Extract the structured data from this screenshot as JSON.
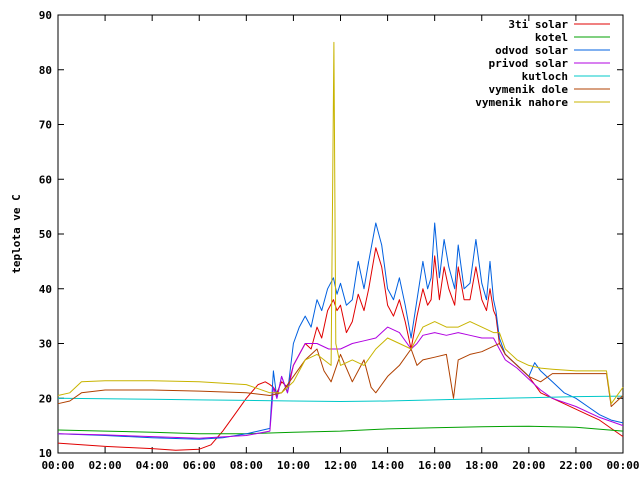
{
  "chart_data": {
    "type": "line",
    "title": "",
    "xlabel": "",
    "ylabel": "teplota ve C",
    "ylim": [
      10,
      90
    ],
    "xlim": [
      0,
      24
    ],
    "yticks": [
      10,
      20,
      30,
      40,
      50,
      60,
      70,
      80,
      90
    ],
    "xticks": [
      {
        "v": 0,
        "label": "00:00"
      },
      {
        "v": 2,
        "label": "02:00"
      },
      {
        "v": 4,
        "label": "04:00"
      },
      {
        "v": 6,
        "label": "06:00"
      },
      {
        "v": 8,
        "label": "08:00"
      },
      {
        "v": 10,
        "label": "10:00"
      },
      {
        "v": 12,
        "label": "12:00"
      },
      {
        "v": 14,
        "label": "14:00"
      },
      {
        "v": 16,
        "label": "16:00"
      },
      {
        "v": 18,
        "label": "18:00"
      },
      {
        "v": 20,
        "label": "20:00"
      },
      {
        "v": 22,
        "label": "22:00"
      },
      {
        "v": 24,
        "label": "00:00"
      }
    ],
    "legend": "top-right",
    "grid": false,
    "series": [
      {
        "name": "3ti solar",
        "color": "#e00000",
        "points": [
          [
            0,
            11.8
          ],
          [
            1,
            11.5
          ],
          [
            2,
            11.2
          ],
          [
            3,
            11
          ],
          [
            4,
            10.8
          ],
          [
            5,
            10.5
          ],
          [
            6,
            10.7
          ],
          [
            6.5,
            11.5
          ],
          [
            7,
            14
          ],
          [
            7.5,
            17
          ],
          [
            8,
            20
          ],
          [
            8.5,
            22.5
          ],
          [
            8.8,
            23
          ],
          [
            9,
            22.5
          ],
          [
            9.15,
            22
          ],
          [
            9.3,
            21
          ],
          [
            9.5,
            23
          ],
          [
            9.75,
            22
          ],
          [
            10,
            26
          ],
          [
            10.25,
            28
          ],
          [
            10.5,
            30
          ],
          [
            10.75,
            29
          ],
          [
            11,
            33
          ],
          [
            11.2,
            31
          ],
          [
            11.45,
            36
          ],
          [
            11.7,
            38
          ],
          [
            11.85,
            36
          ],
          [
            12,
            37
          ],
          [
            12.25,
            32
          ],
          [
            12.5,
            34
          ],
          [
            12.75,
            39
          ],
          [
            13,
            36
          ],
          [
            13.2,
            40
          ],
          [
            13.5,
            47.5
          ],
          [
            13.75,
            44
          ],
          [
            14,
            37
          ],
          [
            14.25,
            35
          ],
          [
            14.5,
            38
          ],
          [
            14.75,
            34
          ],
          [
            15,
            29
          ],
          [
            15.25,
            35
          ],
          [
            15.5,
            40
          ],
          [
            15.7,
            37
          ],
          [
            15.85,
            38
          ],
          [
            16,
            46
          ],
          [
            16.2,
            38
          ],
          [
            16.4,
            44
          ],
          [
            16.6,
            40
          ],
          [
            16.85,
            37
          ],
          [
            17,
            44
          ],
          [
            17.25,
            38
          ],
          [
            17.5,
            38
          ],
          [
            17.75,
            44
          ],
          [
            18,
            38
          ],
          [
            18.2,
            36
          ],
          [
            18.35,
            40
          ],
          [
            18.5,
            36
          ],
          [
            18.6,
            35
          ],
          [
            18.75,
            30
          ],
          [
            19,
            28
          ],
          [
            19.5,
            26
          ],
          [
            20,
            24
          ],
          [
            20.5,
            21
          ],
          [
            21,
            20
          ],
          [
            21.5,
            19
          ],
          [
            22,
            18
          ],
          [
            22.5,
            17
          ],
          [
            23,
            16
          ],
          [
            23.5,
            14.5
          ],
          [
            24,
            13
          ]
        ]
      },
      {
        "name": "kotel",
        "color": "#00a000",
        "points": [
          [
            0,
            14.2
          ],
          [
            2,
            14
          ],
          [
            4,
            13.8
          ],
          [
            6,
            13.5
          ],
          [
            8,
            13.5
          ],
          [
            10,
            13.8
          ],
          [
            12,
            14
          ],
          [
            14,
            14.4
          ],
          [
            16,
            14.6
          ],
          [
            18,
            14.8
          ],
          [
            20,
            14.9
          ],
          [
            22,
            14.7
          ],
          [
            24,
            14
          ]
        ]
      },
      {
        "name": "odvod solar",
        "color": "#0060e0",
        "points": [
          [
            0,
            13.5
          ],
          [
            2,
            13.2
          ],
          [
            4,
            12.8
          ],
          [
            6,
            12.5
          ],
          [
            7,
            12.8
          ],
          [
            8,
            13.5
          ],
          [
            8.5,
            14
          ],
          [
            9,
            14.5
          ],
          [
            9.15,
            25
          ],
          [
            9.3,
            20
          ],
          [
            9.5,
            24
          ],
          [
            9.75,
            21
          ],
          [
            10,
            30
          ],
          [
            10.25,
            33
          ],
          [
            10.5,
            35
          ],
          [
            10.75,
            33
          ],
          [
            11,
            38
          ],
          [
            11.2,
            36
          ],
          [
            11.45,
            40
          ],
          [
            11.7,
            42
          ],
          [
            11.85,
            39
          ],
          [
            12,
            41
          ],
          [
            12.25,
            37
          ],
          [
            12.5,
            38
          ],
          [
            12.75,
            45
          ],
          [
            13,
            40
          ],
          [
            13.2,
            45
          ],
          [
            13.5,
            52
          ],
          [
            13.75,
            48
          ],
          [
            14,
            40
          ],
          [
            14.25,
            38
          ],
          [
            14.5,
            42
          ],
          [
            14.75,
            37
          ],
          [
            15,
            31
          ],
          [
            15.25,
            38
          ],
          [
            15.5,
            45
          ],
          [
            15.7,
            40
          ],
          [
            15.85,
            42
          ],
          [
            16,
            52
          ],
          [
            16.2,
            42
          ],
          [
            16.4,
            49
          ],
          [
            16.6,
            44
          ],
          [
            16.85,
            40
          ],
          [
            17,
            48
          ],
          [
            17.25,
            40
          ],
          [
            17.5,
            41
          ],
          [
            17.75,
            49
          ],
          [
            18,
            41
          ],
          [
            18.2,
            38
          ],
          [
            18.35,
            45
          ],
          [
            18.5,
            38
          ],
          [
            18.6,
            36
          ],
          [
            18.75,
            31
          ],
          [
            19,
            28
          ],
          [
            19.5,
            26
          ],
          [
            20,
            24
          ],
          [
            20.25,
            26.5
          ],
          [
            20.5,
            25
          ],
          [
            21,
            23
          ],
          [
            21.5,
            21
          ],
          [
            22,
            20
          ],
          [
            22.5,
            18.5
          ],
          [
            23,
            17
          ],
          [
            23.5,
            16
          ],
          [
            24,
            15.5
          ]
        ]
      },
      {
        "name": "privod solar",
        "color": "#b000e0",
        "points": [
          [
            0,
            13.5
          ],
          [
            2,
            13.3
          ],
          [
            4,
            13
          ],
          [
            6,
            12.7
          ],
          [
            8,
            13.2
          ],
          [
            9,
            14
          ],
          [
            9.15,
            22
          ],
          [
            9.3,
            20
          ],
          [
            9.5,
            24
          ],
          [
            9.75,
            21
          ],
          [
            10,
            26
          ],
          [
            10.5,
            30
          ],
          [
            11,
            30
          ],
          [
            11.5,
            29
          ],
          [
            12,
            29
          ],
          [
            12.5,
            30
          ],
          [
            13,
            30.5
          ],
          [
            13.5,
            31
          ],
          [
            14,
            33
          ],
          [
            14.5,
            32
          ],
          [
            15,
            29
          ],
          [
            15.25,
            30
          ],
          [
            15.5,
            31.5
          ],
          [
            16,
            32
          ],
          [
            16.5,
            31.5
          ],
          [
            17,
            32
          ],
          [
            17.5,
            31.5
          ],
          [
            18,
            31
          ],
          [
            18.5,
            31
          ],
          [
            18.75,
            29
          ],
          [
            19,
            27
          ],
          [
            19.5,
            25.5
          ],
          [
            20,
            23.5
          ],
          [
            20.5,
            21.5
          ],
          [
            21,
            20
          ],
          [
            22,
            18.5
          ],
          [
            23,
            16.5
          ],
          [
            24,
            15
          ]
        ]
      },
      {
        "name": "kutloch",
        "color": "#00c8c8",
        "points": [
          [
            0,
            20
          ],
          [
            2,
            19.9
          ],
          [
            4,
            19.8
          ],
          [
            6,
            19.7
          ],
          [
            8,
            19.6
          ],
          [
            10,
            19.5
          ],
          [
            12,
            19.4
          ],
          [
            14,
            19.5
          ],
          [
            16,
            19.7
          ],
          [
            18,
            19.9
          ],
          [
            20,
            20.1
          ],
          [
            22,
            20.3
          ],
          [
            24,
            20.4
          ]
        ]
      },
      {
        "name": "vymenik dole",
        "color": "#b04000",
        "points": [
          [
            0,
            19
          ],
          [
            0.5,
            19.5
          ],
          [
            1,
            21
          ],
          [
            2,
            21.5
          ],
          [
            4,
            21.5
          ],
          [
            6,
            21.3
          ],
          [
            8,
            21
          ],
          [
            9,
            20.5
          ],
          [
            9.5,
            21
          ],
          [
            10,
            24
          ],
          [
            10.5,
            27
          ],
          [
            11,
            29
          ],
          [
            11.3,
            25
          ],
          [
            11.6,
            23
          ],
          [
            12,
            28
          ],
          [
            12.5,
            23
          ],
          [
            13,
            27
          ],
          [
            13.3,
            22
          ],
          [
            13.5,
            21
          ],
          [
            14,
            24
          ],
          [
            14.5,
            26
          ],
          [
            15,
            29
          ],
          [
            15.25,
            26
          ],
          [
            15.5,
            27
          ],
          [
            16,
            27.5
          ],
          [
            16.5,
            28
          ],
          [
            16.8,
            20
          ],
          [
            17,
            27
          ],
          [
            17.5,
            28
          ],
          [
            18,
            28.5
          ],
          [
            18.5,
            29.5
          ],
          [
            18.75,
            30
          ],
          [
            19,
            28
          ],
          [
            19.5,
            26
          ],
          [
            20,
            24
          ],
          [
            20.5,
            23
          ],
          [
            21,
            24.5
          ],
          [
            22,
            24.5
          ],
          [
            23,
            24.5
          ],
          [
            23.3,
            24.5
          ],
          [
            23.5,
            18.5
          ],
          [
            24,
            20.5
          ]
        ]
      },
      {
        "name": "vymenik nahore",
        "color": "#c8b400",
        "points": [
          [
            0,
            20.5
          ],
          [
            0.5,
            21
          ],
          [
            1,
            23
          ],
          [
            2,
            23.2
          ],
          [
            4,
            23.2
          ],
          [
            6,
            23
          ],
          [
            8,
            22.5
          ],
          [
            9,
            21
          ],
          [
            9.5,
            21
          ],
          [
            10,
            23
          ],
          [
            10.5,
            27
          ],
          [
            11,
            28
          ],
          [
            11.3,
            27
          ],
          [
            11.6,
            26
          ],
          [
            11.72,
            85
          ],
          [
            11.8,
            30
          ],
          [
            12,
            26
          ],
          [
            12.5,
            27
          ],
          [
            13,
            26
          ],
          [
            13.5,
            29
          ],
          [
            14,
            31
          ],
          [
            14.5,
            30
          ],
          [
            15,
            29
          ],
          [
            15.5,
            33
          ],
          [
            16,
            34
          ],
          [
            16.5,
            33
          ],
          [
            17,
            33
          ],
          [
            17.5,
            34
          ],
          [
            18,
            33
          ],
          [
            18.5,
            32
          ],
          [
            18.75,
            32
          ],
          [
            19,
            29
          ],
          [
            19.5,
            27
          ],
          [
            20,
            26
          ],
          [
            20.5,
            25.5
          ],
          [
            21,
            25.3
          ],
          [
            22,
            25
          ],
          [
            23,
            25
          ],
          [
            23.3,
            25
          ],
          [
            23.5,
            19
          ],
          [
            24,
            22
          ]
        ]
      }
    ]
  }
}
